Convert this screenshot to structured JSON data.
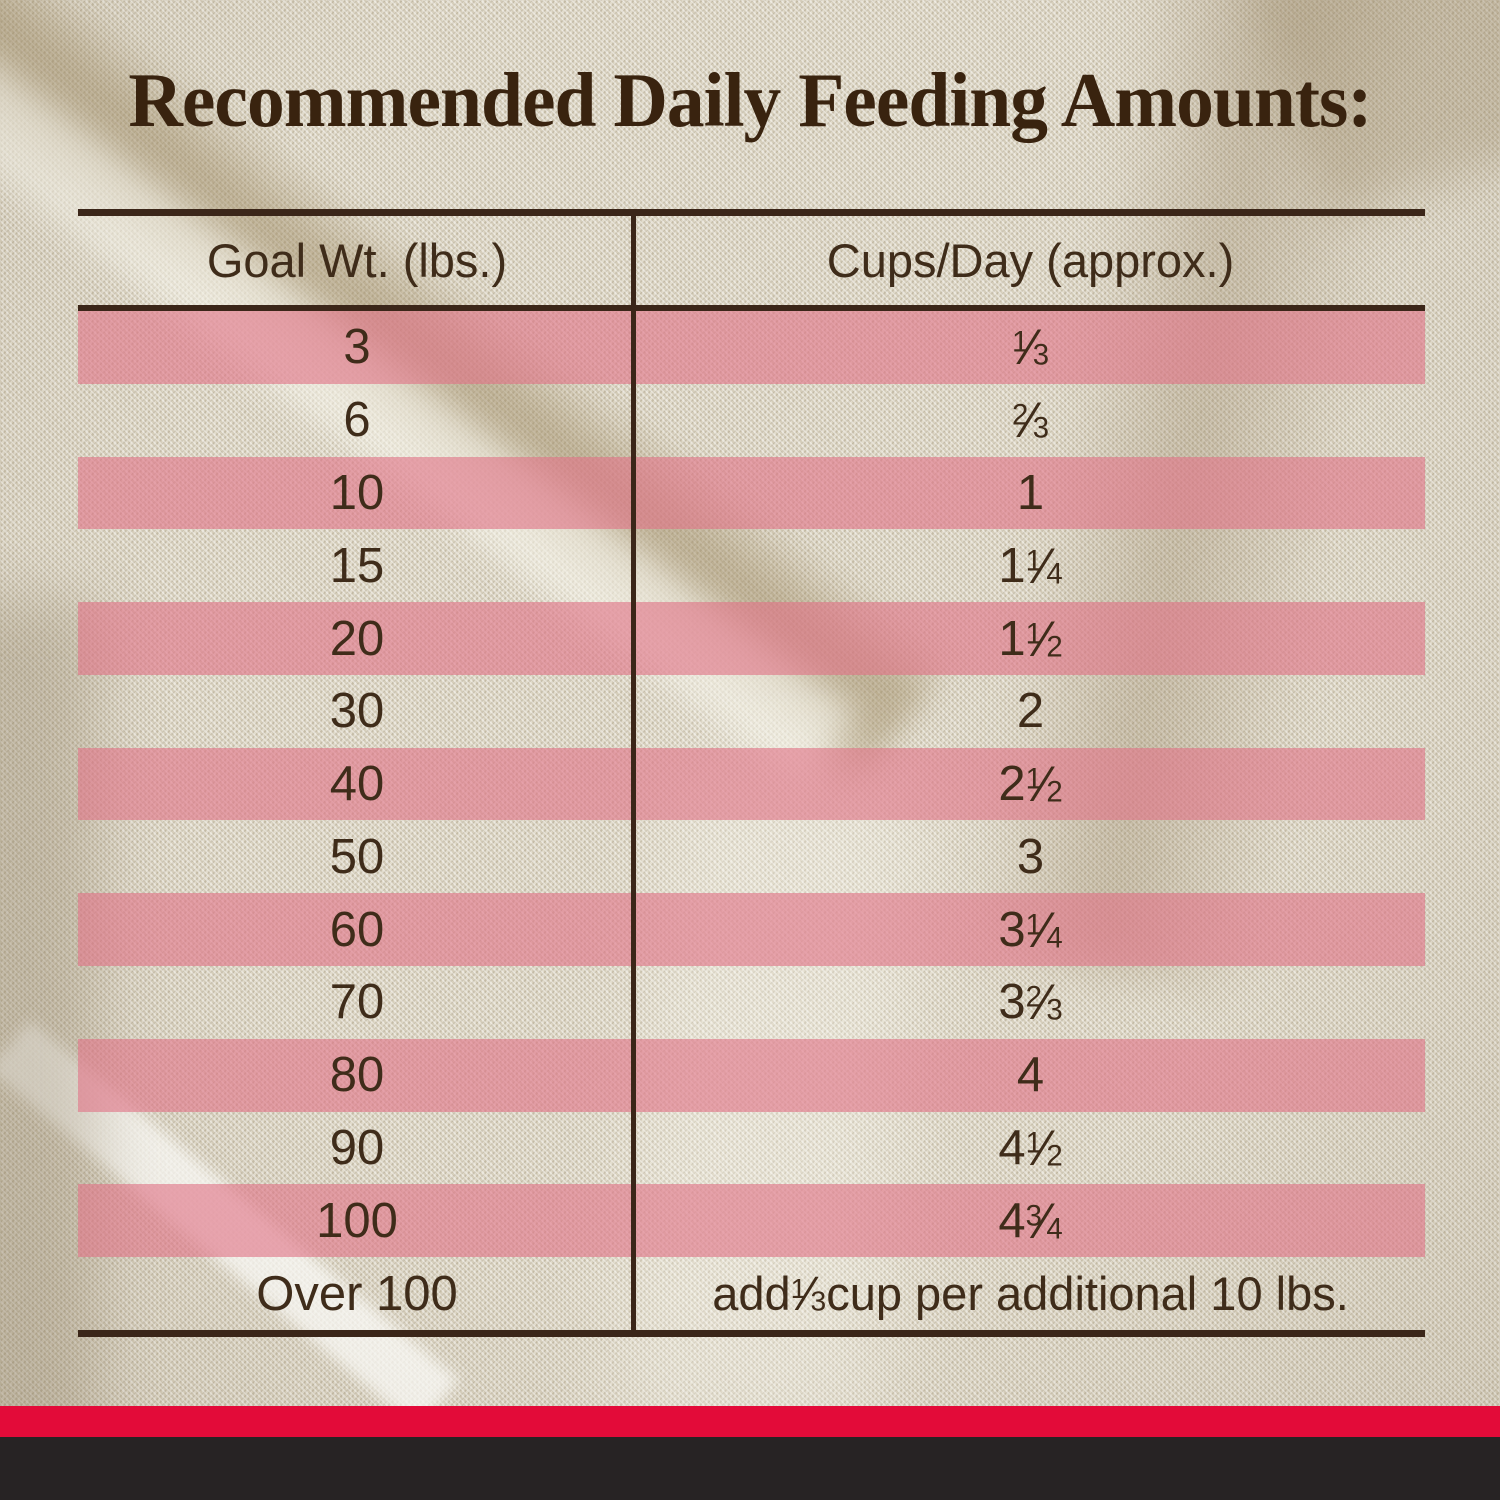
{
  "title": "Recommended Daily Feeding Amounts:",
  "chart_data": {
    "type": "table",
    "title": "Recommended Daily Feeding Amounts:",
    "columns": [
      "Goal Wt. (lbs.)",
      "Cups/Day (approx.)"
    ],
    "rows": [
      {
        "goal": "3",
        "cups": "⅓"
      },
      {
        "goal": "6",
        "cups": "⅔"
      },
      {
        "goal": "10",
        "cups": "1"
      },
      {
        "goal": "15",
        "cups": "1 ¼"
      },
      {
        "goal": "20",
        "cups": "1 ½"
      },
      {
        "goal": "30",
        "cups": "2"
      },
      {
        "goal": "40",
        "cups": "2 ½"
      },
      {
        "goal": "50",
        "cups": "3"
      },
      {
        "goal": "60",
        "cups": "3 ¼"
      },
      {
        "goal": "70",
        "cups": "3 ⅔"
      },
      {
        "goal": "80",
        "cups": "4"
      },
      {
        "goal": "90",
        "cups": "4 ½"
      },
      {
        "goal": "100",
        "cups": "4 ¾"
      },
      {
        "goal": "Over 100",
        "cups": "add ⅓ cup per additional 10 lbs."
      }
    ],
    "layout_hints": {
      "striped_rows": "alternating starting with first data row",
      "grid": "outer horizontal rules top and bottom, one header rule, one vertical column divider"
    }
  },
  "colors": {
    "row_stripe": "rgba(224,116,136,0.62)",
    "red_stripe_band": "#e30b39",
    "dark_footer_band": "#272324",
    "table_lines": "#3b2619",
    "text_ink": "#3f2c1a",
    "title_ink": "#39230f",
    "fabric_background": "#dcd5c3"
  }
}
